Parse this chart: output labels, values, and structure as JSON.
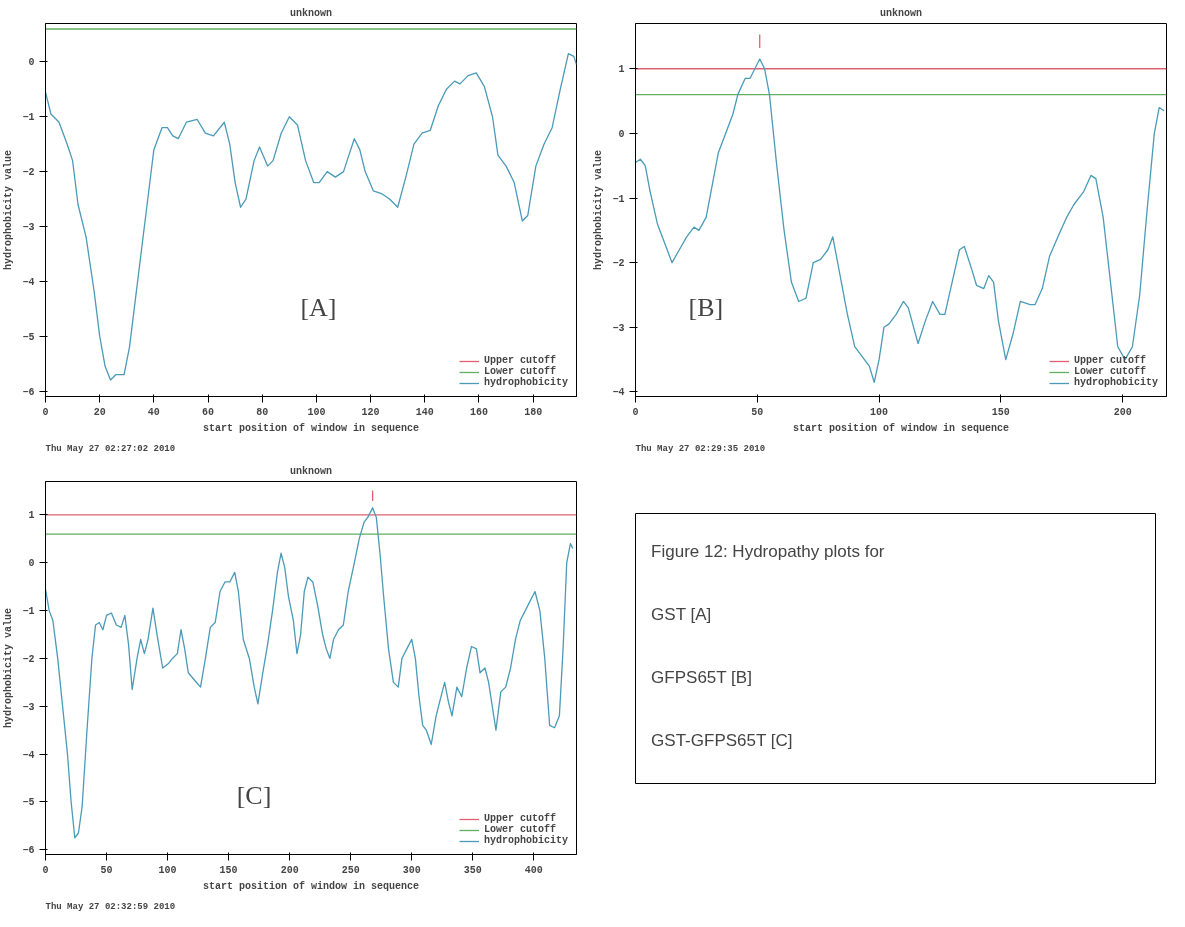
{
  "chart_data": [
    {
      "type": "line",
      "title": "unknown",
      "xlabel": "start position of window in sequence",
      "ylabel": "hydrophobicity value",
      "xlim": [
        0,
        196
      ],
      "ylim": [
        -6.1,
        0.7
      ],
      "xticks": [
        0,
        20,
        40,
        60,
        80,
        100,
        120,
        140,
        160,
        180
      ],
      "yticks": [
        -6,
        -5,
        -4,
        -3,
        -2,
        -1,
        0
      ],
      "legend": "bottom right",
      "grid": false,
      "annotations": [
        "[A]",
        "Thu May 27 02:27:02 2010"
      ],
      "series": [
        {
          "name": "Upper cutoff",
          "color": "#e06070"
        },
        {
          "name": "Lower cutoff",
          "color": "#60b060",
          "x": [
            0,
            196
          ],
          "values": [
            0.6,
            0.6
          ]
        },
        {
          "name": "hydrophobicity",
          "color": "#4a9ab8",
          "x": [
            0,
            2,
            5,
            8,
            10,
            12,
            15,
            18,
            20,
            22,
            24,
            26,
            29,
            31,
            34,
            37,
            40,
            43,
            45,
            47,
            49,
            52,
            56,
            59,
            62,
            66,
            68,
            70,
            72,
            74,
            77,
            79,
            82,
            84,
            87,
            90,
            93,
            96,
            99,
            101,
            104,
            107,
            110,
            112,
            114,
            116,
            118,
            121,
            124,
            127,
            130,
            133,
            136,
            139,
            142,
            145,
            148,
            151,
            153,
            156,
            159,
            162,
            165,
            167,
            170,
            173,
            176,
            178,
            181,
            184,
            187,
            190,
            193,
            195,
            196
          ],
          "values": [
            -0.55,
            -0.95,
            -1.1,
            -1.5,
            -1.8,
            -2.6,
            -3.2,
            -4.2,
            -5.0,
            -5.55,
            -5.8,
            -5.7,
            -5.7,
            -5.2,
            -4.0,
            -2.8,
            -1.6,
            -1.2,
            -1.2,
            -1.35,
            -1.4,
            -1.1,
            -1.05,
            -1.3,
            -1.35,
            -1.1,
            -1.5,
            -2.2,
            -2.65,
            -2.5,
            -1.8,
            -1.55,
            -1.9,
            -1.8,
            -1.3,
            -1.0,
            -1.15,
            -1.8,
            -2.2,
            -2.2,
            -2.0,
            -2.1,
            -2.0,
            -1.7,
            -1.4,
            -1.6,
            -2.0,
            -2.35,
            -2.4,
            -2.5,
            -2.65,
            -2.1,
            -1.5,
            -1.3,
            -1.25,
            -0.8,
            -0.5,
            -0.35,
            -0.4,
            -0.25,
            -0.2,
            -0.45,
            -1.0,
            -1.7,
            -1.9,
            -2.2,
            -2.9,
            -2.8,
            -1.9,
            -1.5,
            -1.2,
            -0.5,
            0.15,
            0.1,
            -0.05
          ]
        }
      ]
    },
    {
      "type": "line",
      "title": "unknown",
      "xlabel": "start position of window in sequence",
      "ylabel": "hydrophobicity value",
      "xlim": [
        0,
        218
      ],
      "ylim": [
        -4.07,
        1.7
      ],
      "xticks": [
        0,
        50,
        100,
        150,
        200
      ],
      "yticks": [
        -4,
        -3,
        -2,
        -1,
        0,
        1
      ],
      "legend": "bottom right",
      "grid": false,
      "annotations": [
        "[B]",
        "Thu May 27 02:29:35 2010"
      ],
      "series": [
        {
          "name": "Upper cutoff",
          "color": "#e06070",
          "x": [
            0,
            218
          ],
          "values": [
            1,
            1
          ]
        },
        {
          "name": "Lower cutoff",
          "color": "#60b060",
          "x": [
            0,
            218
          ],
          "values": [
            0.6,
            0.6
          ]
        },
        {
          "name": "hydrophobicity",
          "color": "#4a9ab8",
          "x": [
            0,
            2,
            4,
            6,
            9,
            12,
            15,
            18,
            21,
            24,
            26,
            29,
            31,
            34,
            37,
            40,
            42,
            45,
            47,
            49,
            51,
            53,
            55,
            58,
            61,
            64,
            67,
            70,
            73,
            76,
            79,
            81,
            84,
            87,
            90,
            93,
            96,
            98,
            100,
            102,
            104,
            107,
            110,
            112,
            116,
            119,
            122,
            125,
            127,
            130,
            133,
            135,
            138,
            140,
            143,
            145,
            147,
            149,
            152,
            155,
            158,
            162,
            164,
            167,
            170,
            174,
            177,
            180,
            184,
            187,
            189,
            192,
            195,
            198,
            201,
            204,
            207,
            210,
            213,
            215,
            217
          ],
          "values": [
            -0.45,
            -0.4,
            -0.5,
            -0.9,
            -1.4,
            -1.7,
            -2.0,
            -1.8,
            -1.6,
            -1.45,
            -1.5,
            -1.3,
            -0.9,
            -0.3,
            0.0,
            0.3,
            0.6,
            0.85,
            0.85,
            1.0,
            1.15,
            1.0,
            0.6,
            -0.5,
            -1.5,
            -2.3,
            -2.6,
            -2.55,
            -2.0,
            -1.95,
            -1.8,
            -1.6,
            -2.2,
            -2.8,
            -3.3,
            -3.45,
            -3.6,
            -3.85,
            -3.5,
            -3.0,
            -2.95,
            -2.8,
            -2.6,
            -2.7,
            -3.25,
            -2.9,
            -2.6,
            -2.8,
            -2.8,
            -2.3,
            -1.8,
            -1.75,
            -2.1,
            -2.35,
            -2.4,
            -2.2,
            -2.3,
            -2.9,
            -3.5,
            -3.1,
            -2.6,
            -2.65,
            -2.65,
            -2.4,
            -1.9,
            -1.55,
            -1.3,
            -1.1,
            -0.9,
            -0.65,
            -0.7,
            -1.3,
            -2.3,
            -3.3,
            -3.5,
            -3.3,
            -2.5,
            -1.2,
            0.0,
            0.4,
            0.35
          ]
        },
        {
          "color": "#e06070",
          "x": [
            51,
            51
          ],
          "values": [
            1.32,
            1.53
          ]
        }
      ]
    },
    {
      "type": "line",
      "title": "unknown",
      "xlabel": "start position of window in sequence",
      "ylabel": "hydrophobicity value",
      "xlim": [
        0,
        435
      ],
      "ylim": [
        -6.1,
        1.7
      ],
      "xticks": [
        0,
        50,
        100,
        150,
        200,
        250,
        300,
        350,
        400
      ],
      "yticks": [
        -6,
        -5,
        -4,
        -3,
        -2,
        -1,
        0,
        1
      ],
      "legend": "bottom right",
      "grid": false,
      "annotations": [
        "[C]",
        "Thu May 27 02:32:59 2010"
      ],
      "series": [
        {
          "name": "Upper cutoff",
          "color": "#e06070",
          "x": [
            0,
            435
          ],
          "values": [
            1,
            1
          ]
        },
        {
          "name": "Lower cutoff",
          "color": "#60b060",
          "x": [
            0,
            435
          ],
          "values": [
            0.6,
            0.6
          ]
        },
        {
          "name": "hydrophobicity",
          "color": "#4a9ab8",
          "x": [
            0,
            3,
            6,
            10,
            14,
            18,
            21,
            24,
            27,
            30,
            34,
            38,
            41,
            44,
            47,
            50,
            54,
            58,
            62,
            65,
            68,
            71,
            75,
            78,
            81,
            84,
            88,
            92,
            96,
            101,
            104,
            108,
            111,
            114,
            117,
            122,
            127,
            131,
            135,
            139,
            143,
            147,
            151,
            155,
            158,
            162,
            167,
            171,
            174,
            178,
            182,
            186,
            190,
            193,
            196,
            199,
            203,
            206,
            209,
            212,
            215,
            219,
            223,
            227,
            230,
            233,
            236,
            240,
            244,
            248,
            253,
            257,
            261,
            264,
            268,
            271,
            274,
            277,
            281,
            285,
            289,
            292,
            296,
            300,
            303,
            306,
            309,
            312,
            316,
            320,
            324,
            327,
            330,
            333,
            337,
            341,
            345,
            349,
            353,
            356,
            360,
            363,
            366,
            369,
            373,
            377,
            381,
            385,
            389,
            395,
            401,
            405,
            409,
            413,
            417,
            421,
            424,
            427,
            430,
            432
          ],
          "values": [
            -0.55,
            -1.0,
            -1.2,
            -2.0,
            -3.0,
            -4.0,
            -5.0,
            -5.75,
            -5.65,
            -5.1,
            -3.5,
            -2.0,
            -1.3,
            -1.25,
            -1.4,
            -1.1,
            -1.05,
            -1.3,
            -1.35,
            -1.1,
            -1.7,
            -2.65,
            -2.0,
            -1.6,
            -1.9,
            -1.6,
            -0.95,
            -1.6,
            -2.2,
            -2.1,
            -2.0,
            -1.9,
            -1.4,
            -1.8,
            -2.3,
            -2.45,
            -2.6,
            -2.0,
            -1.35,
            -1.25,
            -0.6,
            -0.4,
            -0.4,
            -0.2,
            -0.6,
            -1.6,
            -2.0,
            -2.6,
            -2.95,
            -2.3,
            -1.7,
            -1.0,
            -0.2,
            0.2,
            -0.1,
            -0.7,
            -1.2,
            -1.9,
            -1.5,
            -0.6,
            -0.3,
            -0.4,
            -0.9,
            -1.5,
            -1.8,
            -2.0,
            -1.6,
            -1.4,
            -1.3,
            -0.6,
            0.0,
            0.5,
            0.85,
            0.95,
            1.15,
            0.95,
            0.2,
            -0.7,
            -1.8,
            -2.5,
            -2.6,
            -2.0,
            -1.8,
            -1.6,
            -2.0,
            -2.8,
            -3.4,
            -3.5,
            -3.8,
            -3.2,
            -2.8,
            -2.5,
            -2.9,
            -3.2,
            -2.6,
            -2.8,
            -2.2,
            -1.75,
            -1.8,
            -2.3,
            -2.2,
            -2.5,
            -3.0,
            -3.5,
            -2.7,
            -2.6,
            -2.2,
            -1.6,
            -1.2,
            -0.9,
            -0.6,
            -1.0,
            -2.0,
            -3.4,
            -3.45,
            -3.2,
            -1.8,
            0.0,
            0.4,
            0.3
          ]
        },
        {
          "color": "#e06070",
          "x": [
            268,
            268
          ],
          "values": [
            1.29,
            1.51
          ]
        }
      ]
    },
    {
      "type": "other",
      "title": "Figure 12: Hydropathy plots for",
      "annotations": [
        "GST [A]",
        "GFPS65T [B]",
        "GST-GFPS65T [C]"
      ]
    }
  ]
}
